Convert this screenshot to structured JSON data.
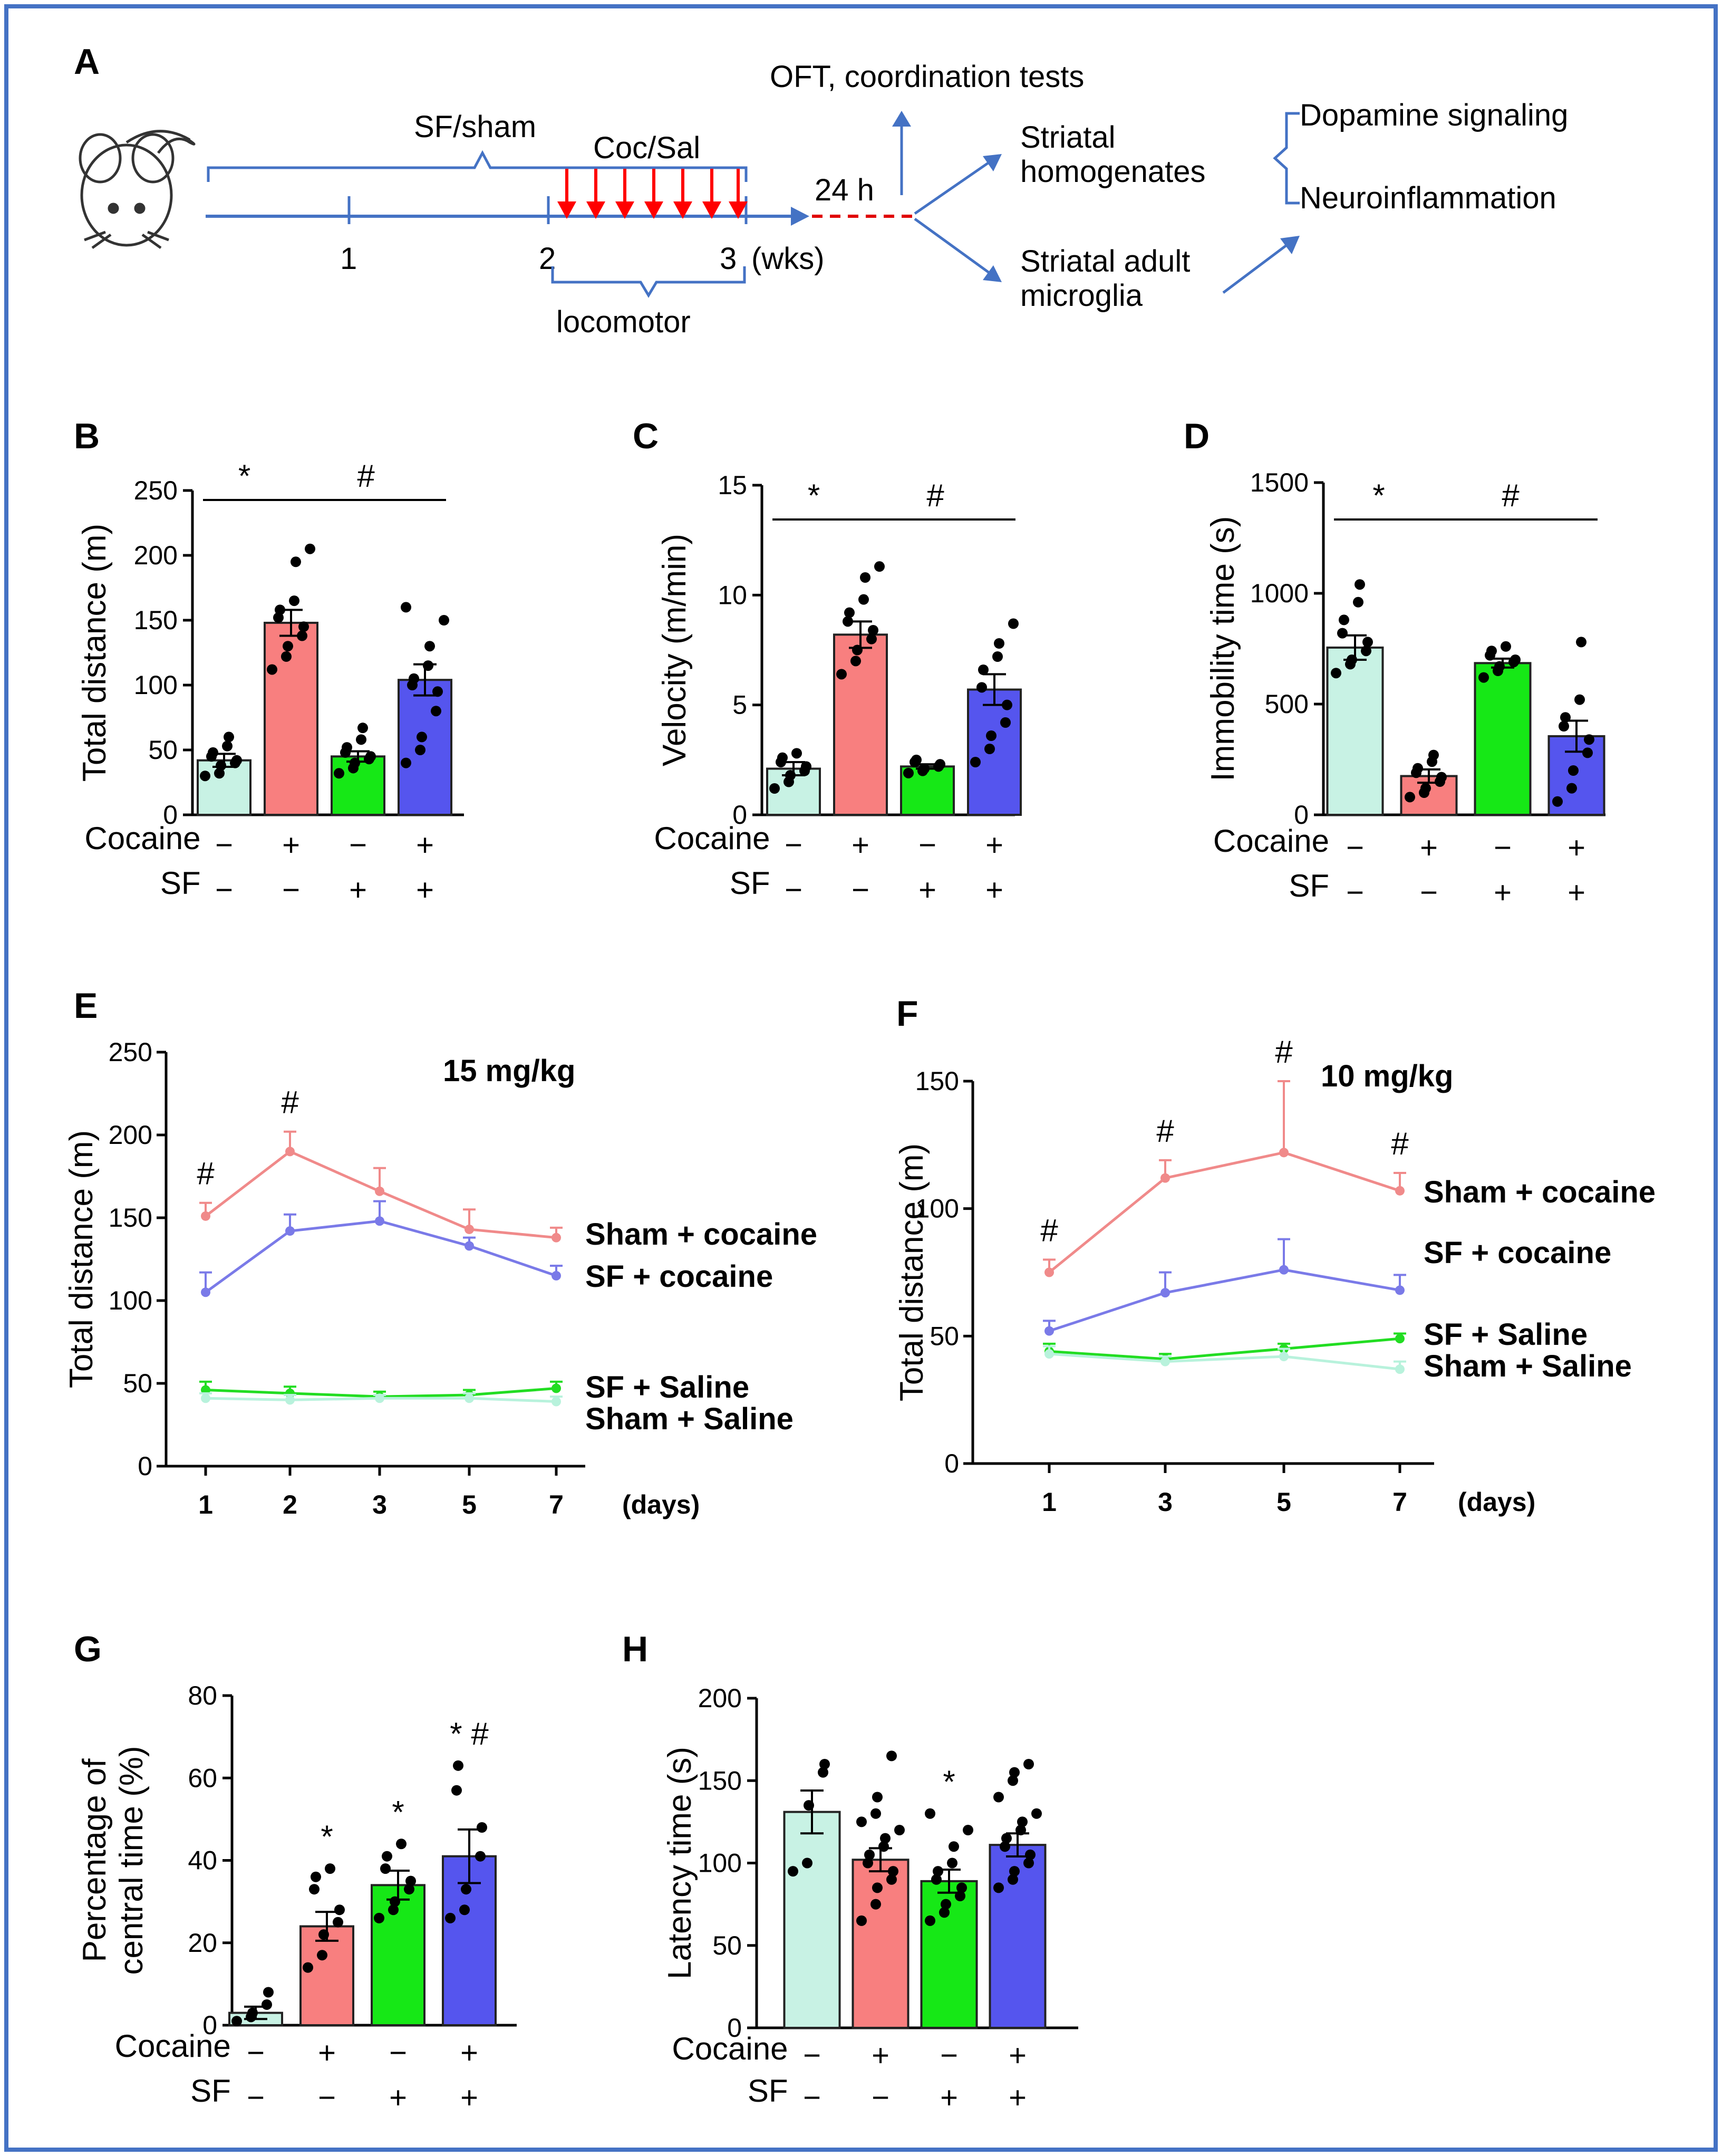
{
  "figure": {
    "border_color": "#4472c4",
    "panel_letters": [
      "A",
      "B",
      "C",
      "D",
      "E",
      "F",
      "G",
      "H"
    ]
  },
  "timeline": {
    "sfsham": "SF/sham",
    "cocsal": "Coc/Sal",
    "week_ticks": [
      "1",
      "2",
      "3"
    ],
    "wks": "(wks)",
    "h24": "24 h",
    "locomotor": "locomotor",
    "oft": "OFT, coordination tests",
    "striatal_homog": [
      "Striatal",
      "homogenates"
    ],
    "striatal_micro": [
      "Striatal adult",
      "microglia"
    ],
    "dopamine": "Dopamine signaling",
    "neuro": "Neuroinflammation",
    "arrow_color": "#4472c4",
    "red_color": "#ff0000"
  },
  "group_rows": {
    "cocaine_label": "Cocaine",
    "sf_label": "SF",
    "cocaine": [
      "−",
      "+",
      "−",
      "+"
    ],
    "sf": [
      "−",
      "−",
      "+",
      "+"
    ]
  },
  "colors": {
    "sham_saline": "#c8f2e4",
    "sham_cocaine": "#f87f7f",
    "sf_saline": "#16e816",
    "sf_cocaine": "#5555ee"
  },
  "chart_data": [
    {
      "panel": "B",
      "type": "bar",
      "ylabel": "Total distance (m)",
      "ylim": [
        0,
        250
      ],
      "yticks": [
        0,
        50,
        100,
        150,
        200,
        250
      ],
      "means": [
        42,
        148,
        45,
        104
      ],
      "sem": [
        5,
        10,
        4,
        12
      ],
      "points": [
        [
          30,
          32,
          38,
          40,
          42,
          45,
          48,
          53,
          60
        ],
        [
          112,
          122,
          130,
          138,
          145,
          152,
          158,
          165,
          195,
          205
        ],
        [
          32,
          36,
          40,
          43,
          45,
          48,
          52,
          58,
          67
        ],
        [
          40,
          50,
          60,
          80,
          95,
          100,
          105,
          115,
          130,
          150,
          160
        ]
      ],
      "sig": [
        {
          "text": "*",
          "from": 0,
          "to": 1
        },
        {
          "text": "#",
          "from": 1,
          "to": 3
        }
      ]
    },
    {
      "panel": "C",
      "type": "bar",
      "ylabel": "Velocity (m/min)",
      "ylim": [
        0,
        15
      ],
      "yticks": [
        0,
        5,
        10,
        15
      ],
      "means": [
        2.1,
        8.2,
        2.2,
        5.7
      ],
      "sem": [
        0.3,
        0.6,
        0.1,
        0.7
      ],
      "points": [
        [
          1.2,
          1.5,
          1.8,
          2.0,
          2.2,
          2.4,
          2.6,
          2.8
        ],
        [
          6.4,
          7.0,
          7.5,
          8.0,
          8.4,
          8.8,
          9.2,
          9.8,
          10.8,
          11.3
        ],
        [
          1.9,
          2.0,
          2.1,
          2.2,
          2.3,
          2.4,
          2.5
        ],
        [
          2.4,
          3.0,
          3.6,
          4.2,
          5.0,
          5.8,
          6.6,
          7.2,
          7.8,
          8.7
        ]
      ],
      "sig": [
        {
          "text": "*",
          "from": 0,
          "to": 1
        },
        {
          "text": "#",
          "from": 1,
          "to": 3
        }
      ]
    },
    {
      "panel": "D",
      "type": "bar",
      "ylabel": "Immobility time (s)",
      "ylim": [
        0,
        1500
      ],
      "yticks": [
        0,
        500,
        1000,
        1500
      ],
      "means": [
        755,
        175,
        685,
        355
      ],
      "sem": [
        55,
        30,
        20,
        70
      ],
      "points": [
        [
          640,
          680,
          700,
          740,
          780,
          820,
          880,
          960,
          1040
        ],
        [
          80,
          100,
          120,
          150,
          170,
          190,
          210,
          240,
          270
        ],
        [
          620,
          650,
          670,
          690,
          700,
          720,
          740,
          760
        ],
        [
          60,
          120,
          200,
          280,
          340,
          400,
          440,
          520,
          780
        ]
      ],
      "sig": [
        {
          "text": "*",
          "from": 0,
          "to": 1
        },
        {
          "text": "#",
          "from": 1,
          "to": 3
        }
      ]
    },
    {
      "panel": "E",
      "type": "line",
      "dose": "15 mg/kg",
      "ylabel": "Total distance (m)",
      "xlabel": "(days)",
      "x": [
        "1",
        "2",
        "3",
        "5",
        "7"
      ],
      "ylim": [
        0,
        250
      ],
      "yticks": [
        0,
        50,
        100,
        150,
        200,
        250
      ],
      "series": [
        {
          "name": "Sham + cocaine",
          "color": "#f08a8a",
          "values": [
            151,
            190,
            166,
            143,
            138
          ],
          "err": [
            8,
            12,
            14,
            12,
            6
          ]
        },
        {
          "name": "SF + cocaine",
          "color": "#7a7ae8",
          "values": [
            105,
            142,
            148,
            133,
            115
          ],
          "err": [
            12,
            10,
            12,
            5,
            6
          ]
        },
        {
          "name": "SF + Saline",
          "color": "#22dd22",
          "values": [
            46,
            44,
            42,
            43,
            47
          ],
          "err": [
            5,
            4,
            3,
            3,
            4
          ]
        },
        {
          "name": "Sham + Saline",
          "color": "#b8f2dc",
          "values": [
            41,
            40,
            41,
            41,
            39
          ],
          "err": [
            3,
            3,
            2,
            3,
            3
          ]
        }
      ],
      "hash_at": [
        0,
        1
      ]
    },
    {
      "panel": "F",
      "type": "line",
      "dose": "10 mg/kg",
      "ylabel": "Total distance (m)",
      "xlabel": "(days)",
      "x": [
        "1",
        "3",
        "5",
        "7"
      ],
      "ylim": [
        0,
        150
      ],
      "yticks": [
        0,
        50,
        100,
        150
      ],
      "series": [
        {
          "name": "Sham + cocaine",
          "color": "#f08a8a",
          "values": [
            75,
            112,
            122,
            107
          ],
          "err": [
            5,
            7,
            28,
            7
          ]
        },
        {
          "name": "SF + cocaine",
          "color": "#7a7ae8",
          "values": [
            52,
            67,
            76,
            68
          ],
          "err": [
            4,
            8,
            12,
            6
          ]
        },
        {
          "name": "SF + Saline",
          "color": "#22dd22",
          "values": [
            44,
            41,
            45,
            49
          ],
          "err": [
            3,
            2,
            2,
            2
          ]
        },
        {
          "name": "Sham + Saline",
          "color": "#b8f2dc",
          "values": [
            43,
            40,
            42,
            37
          ],
          "err": [
            3,
            2,
            3,
            3
          ]
        }
      ],
      "hash_at": [
        0,
        1,
        2,
        3
      ]
    },
    {
      "panel": "G",
      "type": "bar",
      "ylabel": [
        "Percentage of",
        "central time (%)"
      ],
      "ylim": [
        0,
        80
      ],
      "yticks": [
        0,
        20,
        40,
        60,
        80
      ],
      "means": [
        3,
        24,
        34,
        41
      ],
      "sem": [
        1.5,
        3.5,
        3.5,
        6.5
      ],
      "points": [
        [
          1,
          2,
          3,
          5,
          8
        ],
        [
          14,
          17,
          22,
          25,
          28,
          33,
          36,
          38
        ],
        [
          26,
          28,
          30,
          33,
          35,
          38,
          41,
          44
        ],
        [
          26,
          28,
          33,
          41,
          48,
          57,
          63
        ]
      ],
      "stars": [
        {
          "index": 1,
          "text": "*",
          "color": "#000000"
        },
        {
          "index": 2,
          "text": "*",
          "color": "#000000"
        },
        {
          "index": 3,
          "text": "* #",
          "color": "#ff0000"
        }
      ]
    },
    {
      "panel": "H",
      "type": "bar",
      "ylabel": "Latency time (s)",
      "ylim": [
        0,
        200
      ],
      "yticks": [
        0,
        50,
        100,
        150,
        200
      ],
      "means": [
        131,
        102,
        89,
        111
      ],
      "sem": [
        13,
        7,
        7,
        7
      ],
      "points": [
        [
          95,
          100,
          135,
          155,
          160
        ],
        [
          65,
          75,
          85,
          90,
          95,
          100,
          105,
          110,
          115,
          120,
          125,
          130,
          140,
          165
        ],
        [
          65,
          70,
          75,
          80,
          85,
          90,
          95,
          100,
          110,
          120,
          130
        ],
        [
          85,
          90,
          95,
          100,
          105,
          110,
          115,
          120,
          125,
          130,
          140,
          150,
          155,
          160
        ]
      ],
      "stars": [
        {
          "index": 2,
          "text": "*",
          "color": "#ff0000"
        }
      ]
    }
  ]
}
